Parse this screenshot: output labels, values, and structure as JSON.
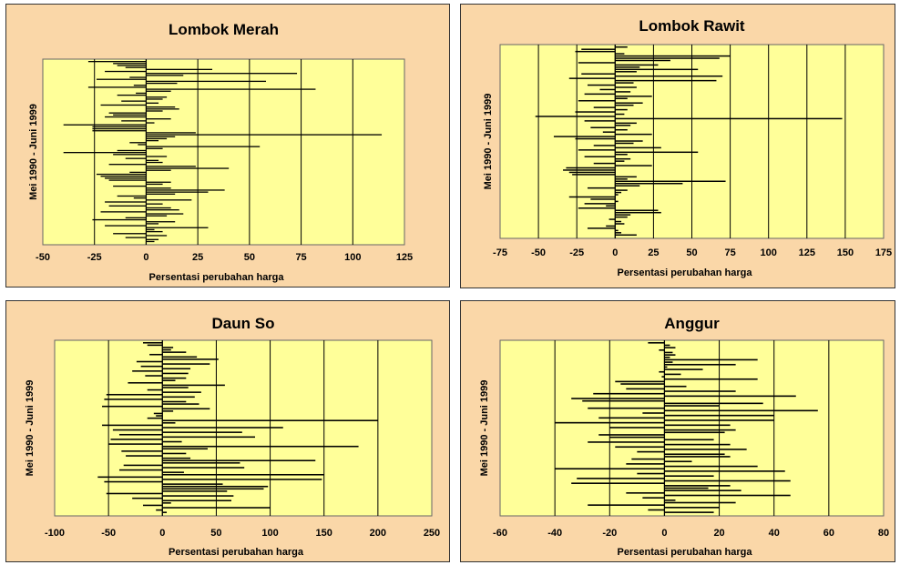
{
  "chart_data": [
    {
      "type": "bar",
      "orientation": "horizontal",
      "title": "Lombok Merah",
      "xlabel": "Persentasi perubahan harga",
      "ylabel": "Mei 1990 - Juni 1999",
      "xlim": [
        -50,
        125
      ],
      "xticks": [
        "-50",
        "-25",
        "0",
        "25",
        "50",
        "75",
        "100",
        "125"
      ],
      "grid": "vertical",
      "bar_color": "#000000",
      "plot_background": "#FFFF99",
      "values": [
        -28,
        -16,
        -14,
        -10,
        32,
        -20,
        73,
        18,
        -8,
        -24,
        58,
        15,
        -6,
        -28,
        82,
        12,
        -5,
        -14,
        10,
        8,
        -12,
        6,
        -22,
        14,
        16,
        8,
        -18,
        -16,
        -20,
        12,
        -12,
        4,
        -40,
        -26,
        -26,
        -26,
        24,
        114,
        14,
        10,
        6,
        -8,
        -4,
        55,
        8,
        -14,
        -40,
        -16,
        10,
        -10,
        6,
        8,
        -18,
        24,
        40,
        12,
        -8,
        -24,
        -22,
        -20,
        -18,
        12,
        8,
        -16,
        12,
        38,
        30,
        14,
        -14,
        -6,
        22,
        -20,
        8,
        -18,
        12,
        16,
        -22,
        18,
        10,
        -10,
        -26,
        14,
        6,
        -20,
        30,
        4,
        8,
        -16,
        10,
        -10,
        6,
        4
      ]
    },
    {
      "type": "bar",
      "orientation": "horizontal",
      "title": "Lombok Rawit",
      "xlabel": "Persentasi perubahan harga",
      "ylabel": "Mei 1990 - Juni 1999",
      "xlim": [
        -75,
        175
      ],
      "xticks": [
        "-75",
        "-50",
        "-25",
        "0",
        "25",
        "50",
        "75",
        "100",
        "125",
        "150",
        "175"
      ],
      "grid": "vertical",
      "bar_color": "#000000",
      "plot_background": "#FFFF99",
      "values": [
        8,
        -22,
        -26,
        6,
        75,
        68,
        36,
        -24,
        28,
        16,
        54,
        14,
        -22,
        70,
        -30,
        66,
        12,
        -18,
        14,
        -10,
        10,
        -20,
        24,
        8,
        -24,
        18,
        12,
        -14,
        8,
        -26,
        6,
        -52,
        148,
        -20,
        14,
        10,
        -16,
        8,
        -8,
        24,
        -40,
        -26,
        18,
        12,
        -14,
        30,
        -24,
        54,
        8,
        -20,
        10,
        6,
        -14,
        24,
        -32,
        -34,
        -30,
        -28,
        14,
        8,
        72,
        44,
        16,
        -18,
        8,
        4,
        2,
        -30,
        -16,
        2,
        -20,
        -6,
        -24,
        28,
        30,
        10,
        8,
        -4,
        4,
        6,
        -6,
        -18,
        2,
        4,
        14
      ]
    },
    {
      "type": "bar",
      "orientation": "horizontal",
      "title": "Daun So",
      "xlabel": "Persentasi perubahan harga",
      "ylabel": "Mei 1990 - Juni 1999",
      "xlim": [
        -100,
        250
      ],
      "xticks": [
        "-100",
        "-50",
        "0",
        "50",
        "100",
        "150",
        "200",
        "250"
      ],
      "grid": "vertical",
      "bar_color": "#000000",
      "plot_background": "#FFFF99",
      "values": [
        -18,
        -14,
        10,
        8,
        22,
        -12,
        32,
        52,
        -24,
        44,
        -20,
        26,
        -28,
        24,
        -16,
        22,
        12,
        -32,
        58,
        24,
        -14,
        36,
        -52,
        30,
        -54,
        22,
        34,
        -56,
        44,
        10,
        -8,
        -6,
        -14,
        200,
        12,
        -56,
        112,
        -46,
        74,
        -40,
        86,
        -48,
        18,
        -50,
        182,
        42,
        -38,
        22,
        -34,
        26,
        142,
        72,
        -36,
        76,
        -40,
        20,
        150,
        -60,
        148,
        -54,
        56,
        98,
        94,
        60,
        -52,
        66,
        -28,
        64,
        8,
        -18,
        100,
        -6,
        4
      ]
    },
    {
      "type": "bar",
      "orientation": "horizontal",
      "title": "Anggur",
      "xlabel": "Persentasi perubahan harga",
      "ylabel": "Mei 1990 - Juni 1999",
      "xlim": [
        -60,
        80
      ],
      "xticks": [
        "-60",
        "-40",
        "-20",
        "0",
        "20",
        "40",
        "60",
        "80"
      ],
      "grid": "vertical",
      "bar_color": "#000000",
      "plot_background": "#FFFF99",
      "values": [
        -6,
        2,
        4,
        -2,
        3,
        4,
        2,
        34,
        3,
        26,
        1,
        14,
        -2,
        6,
        -1,
        34,
        -18,
        -16,
        8,
        -14,
        26,
        -26,
        48,
        -34,
        -30,
        36,
        20,
        -28,
        56,
        -8,
        40,
        -24,
        40,
        -40,
        24,
        -20,
        26,
        22,
        -24,
        -20,
        18,
        -28,
        24,
        -18,
        30,
        -10,
        22,
        24,
        -12,
        10,
        -14,
        34,
        -40,
        44,
        -10,
        18,
        -32,
        46,
        -34,
        24,
        16,
        28,
        -14,
        46,
        -8,
        4,
        26,
        -28,
        20,
        -6,
        18
      ]
    }
  ]
}
